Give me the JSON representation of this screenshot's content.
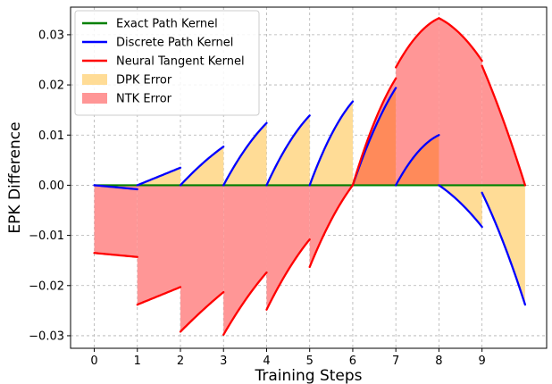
{
  "chart_data": {
    "type": "line",
    "xlabel": "Training Steps",
    "ylabel": "EPK Difference",
    "xlim": [
      -0.55,
      10.5
    ],
    "ylim": [
      -0.0325,
      0.0355
    ],
    "xticks": [
      0,
      1,
      2,
      3,
      4,
      5,
      6,
      7,
      8,
      9
    ],
    "xtick_labels": [
      "0",
      "1",
      "2",
      "3",
      "4",
      "5",
      "6",
      "7",
      "8",
      "9"
    ],
    "yticks": [
      -0.03,
      -0.02,
      -0.01,
      0.0,
      0.01,
      0.02,
      0.03
    ],
    "ytick_labels": [
      "−0.03",
      "−0.02",
      "−0.01",
      "0.00",
      "0.01",
      "0.02",
      "0.03"
    ],
    "grid": true,
    "legend_position": "top-left",
    "colors": {
      "exact": "#008000",
      "dpk": "#0000ff",
      "ntk": "#ff0000",
      "dpk_fill": "#ffdc96",
      "ntk_fill": "#ff9696",
      "overlap_fill": "#ff8a5a"
    },
    "legend": [
      {
        "label": "Exact Path Kernel",
        "kind": "line",
        "color": "#008000"
      },
      {
        "label": "Discrete Path Kernel",
        "kind": "line",
        "color": "#0000ff"
      },
      {
        "label": "Neural Tangent Kernel",
        "kind": "line",
        "color": "#ff0000"
      },
      {
        "label": "DPK Error",
        "kind": "patch",
        "color": "#ffdc96"
      },
      {
        "label": "NTK Error",
        "kind": "patch",
        "color": "#ff9696"
      }
    ],
    "exact": {
      "x": [
        0,
        10
      ],
      "y": [
        0,
        0
      ]
    },
    "dpk_segments": [
      {
        "x0": 0,
        "x1": 1,
        "y0": 0.0,
        "y1": -0.0008,
        "curve": 0
      },
      {
        "x0": 1,
        "x1": 2,
        "y0": 0.0,
        "y1": 0.0035,
        "curve": 0
      },
      {
        "x0": 2,
        "x1": 3,
        "y0": 0.0,
        "y1": 0.0077,
        "curve": 0.2
      },
      {
        "x0": 3,
        "x1": 4,
        "y0": 0.0,
        "y1": 0.0124,
        "curve": 0.3
      },
      {
        "x0": 4,
        "x1": 5,
        "y0": 0.0,
        "y1": 0.0139,
        "curve": 0.35
      },
      {
        "x0": 5,
        "x1": 6,
        "y0": 0.0,
        "y1": 0.0167,
        "curve": 0.4
      },
      {
        "x0": 6,
        "x1": 7,
        "y0": 0.0,
        "y1": 0.0194,
        "curve": 0.3
      },
      {
        "x0": 7,
        "x1": 8,
        "y0": 0.0,
        "y1": 0.01,
        "curve": 0.6
      },
      {
        "x0": 8,
        "x1": 9,
        "y0": 0.0,
        "y1": -0.0083,
        "curve": -0.3
      },
      {
        "x0": 9,
        "x1": 10,
        "y0": -0.0015,
        "y1": -0.0238,
        "curve": -0.2
      }
    ],
    "ntk_segments": [
      {
        "x0": 0,
        "x1": 1,
        "y0": -0.0135,
        "y1": -0.0143,
        "curve": 0
      },
      {
        "x0": 1,
        "x1": 2,
        "y0": -0.0238,
        "y1": -0.0203,
        "curve": 0
      },
      {
        "x0": 2,
        "x1": 3,
        "y0": -0.0292,
        "y1": -0.0213,
        "curve": 0.1
      },
      {
        "x0": 3,
        "x1": 4,
        "y0": -0.0298,
        "y1": -0.0174,
        "curve": 0.2
      },
      {
        "x0": 4,
        "x1": 5,
        "y0": -0.0248,
        "y1": -0.0108,
        "curve": 0.25
      },
      {
        "x0": 5,
        "x1": 6,
        "y0": -0.0163,
        "y1": 0.0,
        "curve": 0.3
      },
      {
        "x0": 6,
        "x1": 7,
        "y0": 0.0,
        "y1": 0.0213,
        "curve": 0.35
      },
      {
        "x0": 7,
        "x1": 8,
        "y0": 0.0235,
        "y1": 0.0333,
        "curve": 0.6
      },
      {
        "x0": 8,
        "x1": 9,
        "y0": 0.0333,
        "y1": 0.0248,
        "curve": -0.5
      },
      {
        "x0": 9,
        "x1": 10,
        "y0": 0.0238,
        "y1": 0.0,
        "curve": -0.15
      }
    ]
  }
}
